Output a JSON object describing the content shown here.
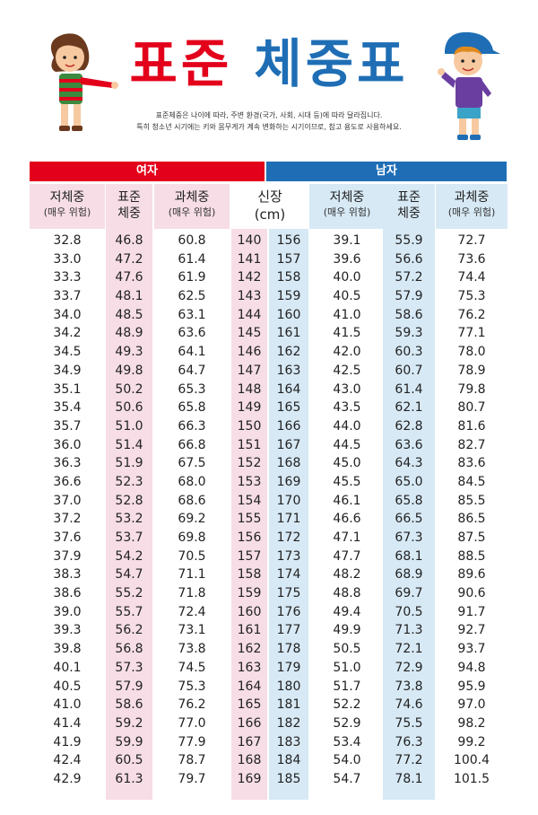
{
  "title_part1": "표준",
  "title_part2": "체중표",
  "subtitle_line1": "표준체중은 나이에 따라, 주변 환경(국가, 사회, 시대 등)에 따라 달라집니다.",
  "subtitle_line2": "특히 청소년 시기에는 키와 몸무게가 계속 변화하는 시기이므로, 참고 용도로 사용하세요.",
  "colors": {
    "female": "#e3001b",
    "male": "#1f6eb5",
    "female_bg": "#f6dde6",
    "male_bg": "#d7e9f5"
  },
  "female_label": "여자",
  "male_label": "남자",
  "headers": {
    "under_main": "저체중",
    "under_sub": "(매우 위험)",
    "std_main_1": "표준",
    "std_main_2": "체중",
    "over_main": "과체중",
    "over_sub": "(매우 위험)",
    "height_main": "신장",
    "height_sub": "(cm)"
  },
  "female_rows": [
    [
      "32.8",
      "46.8",
      "60.8",
      "140"
    ],
    [
      "33.0",
      "47.2",
      "61.4",
      "141"
    ],
    [
      "33.3",
      "47.6",
      "61.9",
      "142"
    ],
    [
      "33.7",
      "48.1",
      "62.5",
      "143"
    ],
    [
      "34.0",
      "48.5",
      "63.1",
      "144"
    ],
    [
      "34.2",
      "48.9",
      "63.6",
      "145"
    ],
    [
      "34.5",
      "49.3",
      "64.1",
      "146"
    ],
    [
      "34.9",
      "49.8",
      "64.7",
      "147"
    ],
    [
      "35.1",
      "50.2",
      "65.3",
      "148"
    ],
    [
      "35.4",
      "50.6",
      "65.8",
      "149"
    ],
    [
      "35.7",
      "51.0",
      "66.3",
      "150"
    ],
    [
      "36.0",
      "51.4",
      "66.8",
      "151"
    ],
    [
      "36.3",
      "51.9",
      "67.5",
      "152"
    ],
    [
      "36.6",
      "52.3",
      "68.0",
      "153"
    ],
    [
      "37.0",
      "52.8",
      "68.6",
      "154"
    ],
    [
      "37.2",
      "53.2",
      "69.2",
      "155"
    ],
    [
      "37.6",
      "53.7",
      "69.8",
      "156"
    ],
    [
      "37.9",
      "54.2",
      "70.5",
      "157"
    ],
    [
      "38.3",
      "54.7",
      "71.1",
      "158"
    ],
    [
      "38.6",
      "55.2",
      "71.8",
      "159"
    ],
    [
      "39.0",
      "55.7",
      "72.4",
      "160"
    ],
    [
      "39.3",
      "56.2",
      "73.1",
      "161"
    ],
    [
      "39.8",
      "56.8",
      "73.8",
      "162"
    ],
    [
      "40.1",
      "57.3",
      "74.5",
      "163"
    ],
    [
      "40.5",
      "57.9",
      "75.3",
      "164"
    ],
    [
      "41.0",
      "58.6",
      "76.2",
      "165"
    ],
    [
      "41.4",
      "59.2",
      "77.0",
      "166"
    ],
    [
      "41.9",
      "59.9",
      "77.9",
      "167"
    ],
    [
      "42.4",
      "60.5",
      "78.7",
      "168"
    ],
    [
      "42.9",
      "61.3",
      "79.7",
      "169"
    ]
  ],
  "male_rows": [
    [
      "156",
      "39.1",
      "55.9",
      "72.7"
    ],
    [
      "157",
      "39.6",
      "56.6",
      "73.6"
    ],
    [
      "158",
      "40.0",
      "57.2",
      "74.4"
    ],
    [
      "159",
      "40.5",
      "57.9",
      "75.3"
    ],
    [
      "160",
      "41.0",
      "58.6",
      "76.2"
    ],
    [
      "161",
      "41.5",
      "59.3",
      "77.1"
    ],
    [
      "162",
      "42.0",
      "60.3",
      "78.0"
    ],
    [
      "163",
      "42.5",
      "60.7",
      "78.9"
    ],
    [
      "164",
      "43.0",
      "61.4",
      "79.8"
    ],
    [
      "165",
      "43.5",
      "62.1",
      "80.7"
    ],
    [
      "166",
      "44.0",
      "62.8",
      "81.6"
    ],
    [
      "167",
      "44.5",
      "63.6",
      "82.7"
    ],
    [
      "168",
      "45.0",
      "64.3",
      "83.6"
    ],
    [
      "169",
      "45.5",
      "65.0",
      "84.5"
    ],
    [
      "170",
      "46.1",
      "65.8",
      "85.5"
    ],
    [
      "171",
      "46.6",
      "66.5",
      "86.5"
    ],
    [
      "172",
      "47.1",
      "67.3",
      "87.5"
    ],
    [
      "173",
      "47.7",
      "68.1",
      "88.5"
    ],
    [
      "174",
      "48.2",
      "68.9",
      "89.6"
    ],
    [
      "175",
      "48.8",
      "69.7",
      "90.6"
    ],
    [
      "176",
      "49.4",
      "70.5",
      "91.7"
    ],
    [
      "177",
      "49.9",
      "71.3",
      "92.7"
    ],
    [
      "178",
      "50.5",
      "72.1",
      "93.7"
    ],
    [
      "179",
      "51.0",
      "72.9",
      "94.8"
    ],
    [
      "180",
      "51.7",
      "73.8",
      "95.9"
    ],
    [
      "181",
      "52.2",
      "74.6",
      "97.0"
    ],
    [
      "182",
      "52.9",
      "75.5",
      "98.2"
    ],
    [
      "183",
      "53.4",
      "76.3",
      "99.2"
    ],
    [
      "184",
      "54.0",
      "77.2",
      "100.4"
    ],
    [
      "185",
      "54.7",
      "78.1",
      "101.5"
    ]
  ]
}
